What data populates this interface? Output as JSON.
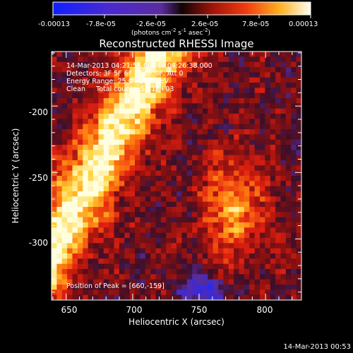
{
  "colorbar": {
    "tick_labels": [
      "-0.00013",
      "-7.8e-05",
      "-2.6e-05",
      "2.6e-05",
      "7.8e-05",
      "0.00013"
    ],
    "units_prefix": "(photons cm",
    "units_exp1": "-2",
    "units_mid": " s",
    "units_exp2": "-1",
    "units_mid2": " asec",
    "units_exp3": "-2",
    "units_suffix": ")"
  },
  "title": "Reconstructed RHESSI Image",
  "info": {
    "line1": "14-Mar-2013 04:21:56.000 to 04:26:38.000",
    "line2": "Detectors: 3F 5F 6F 7F 8F 9F, Att 0",
    "line3": "Energy Range: 25.0 - 50.0 keV",
    "line4": "Clean     Total counts: 5.41E+03"
  },
  "peak_label": "Position of Peak = [660,-159]",
  "axes": {
    "xlabel": "Heliocentric X (arcsec)",
    "ylabel": "Heliocentric Y (arcsec)",
    "x_ticks": [
      "650",
      "700",
      "750",
      "800"
    ],
    "y_ticks": [
      "-200",
      "-250",
      "-300"
    ],
    "x_range": [
      639,
      827
    ],
    "y_range": [
      -346,
      -159
    ]
  },
  "footer_timestamp": "14-Mar-2013 00:53",
  "colors": {
    "background": "#000000",
    "colormap": [
      "#1a2cff",
      "#3a2ad8",
      "#5a2c9e",
      "#3b0f2a",
      "#8a1010",
      "#e02010",
      "#ff7a10",
      "#ffd23a",
      "#ffffe0"
    ]
  }
}
